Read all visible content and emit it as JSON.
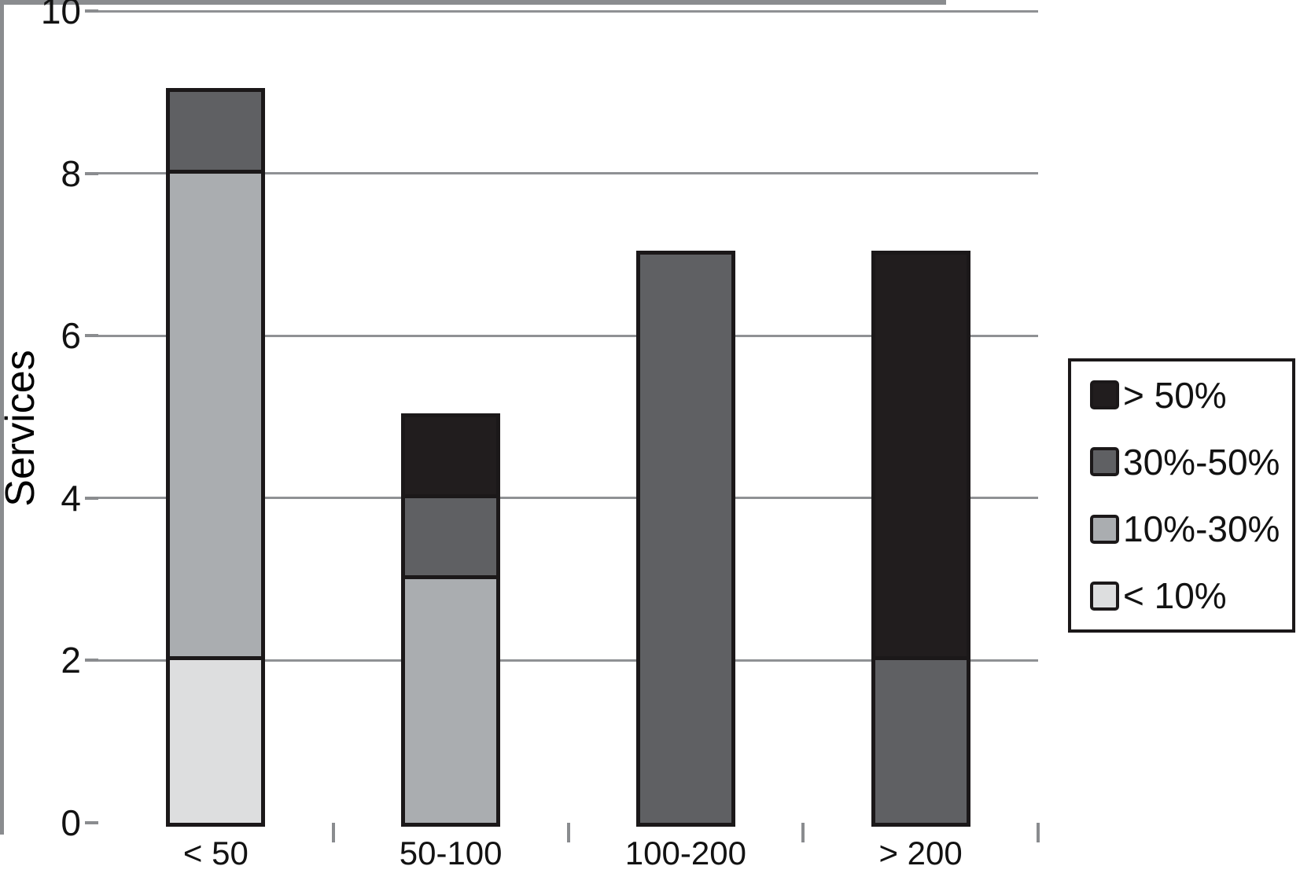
{
  "chart_data": {
    "type": "bar",
    "stacked": true,
    "title": "",
    "categories": [
      "< 50",
      "50-100",
      "100-200",
      "> 200"
    ],
    "series": [
      {
        "name": "< 10%",
        "color": "#dddedf",
        "values": [
          2,
          0,
          0,
          0
        ]
      },
      {
        "name": "10%-30%",
        "color": "#aaadb0",
        "values": [
          6,
          3,
          0,
          0
        ]
      },
      {
        "name": "30%-50%",
        "color": "#5f6063",
        "values": [
          1,
          1,
          7,
          2
        ]
      },
      {
        "name": "> 50%",
        "color": "#211d1e",
        "values": [
          0,
          1,
          0,
          5
        ]
      }
    ],
    "totals": [
      9,
      5,
      7,
      7
    ],
    "xlabel": "",
    "ylabel": "Services",
    "ylim": [
      0,
      10
    ],
    "yticks": [
      "0",
      "2",
      "4",
      "6",
      "8",
      "10"
    ],
    "grid": true,
    "legend": {
      "position": "right",
      "entries_top_to_bottom": [
        "> 50%",
        "30%-50%",
        "10%-30%",
        "< 10%"
      ]
    }
  },
  "colors": {
    "background": "#ffffff",
    "grid_line": "#8f9194",
    "axis_line": "#8a8c8f",
    "bar_border": "#1b1819",
    "legend_border": "#1b1819",
    "text": "#121212"
  }
}
